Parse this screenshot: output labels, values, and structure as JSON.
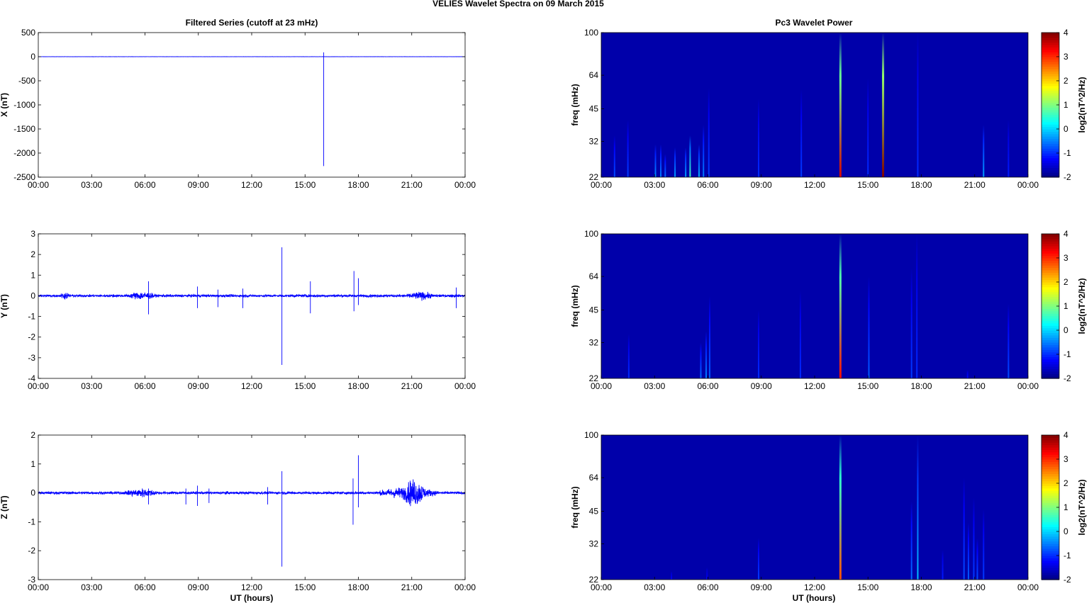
{
  "figure": {
    "suptitle": "VELIES Wavelet Spectra on 09 March     2015",
    "left_title": "Filtered Series (cutoff at 23 mHz)",
    "right_title": "Pc3 Wavelet Power",
    "x_label": "UT (hours)"
  },
  "chart_data": [
    {
      "type": "line",
      "panel": "X",
      "ylabel": "X (nT)",
      "xlim": [
        0,
        24
      ],
      "ylim": [
        -2500,
        500
      ],
      "xticks": [
        "00:00",
        "03:00",
        "06:00",
        "09:00",
        "12:00",
        "15:00",
        "18:00",
        "21:00",
        "00:00"
      ],
      "yticks": [
        -2500,
        -2000,
        -1500,
        -1000,
        -500,
        0,
        500
      ],
      "color": "#0000ff",
      "baseline_noise": 2,
      "spikes": [
        {
          "x": 16.05,
          "y_min": -2270,
          "y_max": 90
        }
      ]
    },
    {
      "type": "line",
      "panel": "Y",
      "ylabel": "Y (nT)",
      "xlim": [
        0,
        24
      ],
      "ylim": [
        -4,
        3
      ],
      "xticks": [
        "00:00",
        "03:00",
        "06:00",
        "09:00",
        "12:00",
        "15:00",
        "18:00",
        "21:00",
        "00:00"
      ],
      "yticks": [
        -4,
        -3,
        -2,
        -1,
        0,
        1,
        2,
        3
      ],
      "color": "#0000ff",
      "baseline_noise": 0.07,
      "bursts": [
        {
          "x0": 5.0,
          "x1": 6.6,
          "amp": 0.15
        },
        {
          "x0": 20.7,
          "x1": 22.3,
          "amp": 0.15
        },
        {
          "x0": 1.2,
          "x1": 1.8,
          "amp": 0.12
        }
      ],
      "spikes": [
        {
          "x": 6.2,
          "y_min": -0.9,
          "y_max": 0.7
        },
        {
          "x": 8.95,
          "y_min": -0.6,
          "y_max": 0.45
        },
        {
          "x": 10.1,
          "y_min": -0.55,
          "y_max": 0.3
        },
        {
          "x": 11.5,
          "y_min": -0.6,
          "y_max": 0.35
        },
        {
          "x": 13.7,
          "y_min": -3.35,
          "y_max": 2.35
        },
        {
          "x": 15.3,
          "y_min": -0.85,
          "y_max": 0.7
        },
        {
          "x": 17.75,
          "y_min": -0.75,
          "y_max": 1.2
        },
        {
          "x": 18.0,
          "y_min": -0.45,
          "y_max": 0.85
        },
        {
          "x": 23.5,
          "y_min": -0.6,
          "y_max": 0.4
        }
      ]
    },
    {
      "type": "line",
      "panel": "Z",
      "ylabel": "Z (nT)",
      "xlim": [
        0,
        24
      ],
      "ylim": [
        -3,
        2
      ],
      "xticks": [
        "00:00",
        "03:00",
        "06:00",
        "09:00",
        "12:00",
        "15:00",
        "18:00",
        "21:00",
        "00:00"
      ],
      "yticks": [
        -3,
        -2,
        -1,
        0,
        1,
        2
      ],
      "color": "#0000ff",
      "baseline_noise": 0.05,
      "bursts": [
        {
          "x0": 4.8,
          "x1": 6.8,
          "amp": 0.12
        },
        {
          "x0": 19.0,
          "x1": 22.6,
          "amp": 0.18
        },
        {
          "x0": 20.5,
          "x1": 21.8,
          "amp": 0.3
        }
      ],
      "spikes": [
        {
          "x": 6.2,
          "y_min": -0.4,
          "y_max": 0.15
        },
        {
          "x": 8.3,
          "y_min": -0.4,
          "y_max": 0.15
        },
        {
          "x": 8.95,
          "y_min": -0.45,
          "y_max": 0.25
        },
        {
          "x": 9.6,
          "y_min": -0.35,
          "y_max": 0.15
        },
        {
          "x": 12.9,
          "y_min": -0.4,
          "y_max": 0.2
        },
        {
          "x": 13.7,
          "y_min": -2.55,
          "y_max": 0.75
        },
        {
          "x": 17.7,
          "y_min": -1.1,
          "y_max": 0.5
        },
        {
          "x": 18.0,
          "y_min": -0.5,
          "y_max": 1.3
        }
      ]
    },
    {
      "type": "heatmap",
      "panel": "X wavelet",
      "ylabel": "freq (mHz)",
      "colorbar_label": "log2(nT^2/Hz)",
      "xlim": [
        0,
        24
      ],
      "ylim": [
        22,
        100
      ],
      "yscale": "log",
      "clim": [
        -2,
        4
      ],
      "xticks": [
        "00:00",
        "03:00",
        "06:00",
        "09:00",
        "12:00",
        "15:00",
        "18:00",
        "21:00",
        "00:00"
      ],
      "yticks": [
        22,
        32,
        45,
        64,
        100
      ],
      "cticks": [
        -2,
        -1,
        0,
        1,
        2,
        3,
        4
      ],
      "colormap": "jet",
      "background_level": -1.75,
      "streaks": [
        {
          "x": 0.75,
          "fmax": 34,
          "level": -0.8
        },
        {
          "x": 1.5,
          "fmax": 40,
          "level": -0.9
        },
        {
          "x": 3.05,
          "fmax": 31,
          "level": -0.4
        },
        {
          "x": 3.35,
          "fmax": 31,
          "level": -0.5
        },
        {
          "x": 3.6,
          "fmax": 28,
          "level": -0.6
        },
        {
          "x": 4.15,
          "fmax": 30,
          "level": -0.3
        },
        {
          "x": 4.75,
          "fmax": 30,
          "level": -0.3
        },
        {
          "x": 5.0,
          "fmax": 34,
          "level": 0.6
        },
        {
          "x": 5.5,
          "fmax": 31,
          "level": -0.2
        },
        {
          "x": 5.75,
          "fmax": 38,
          "level": -0.5
        },
        {
          "x": 6.05,
          "fmax": 56,
          "level": -0.9
        },
        {
          "x": 8.85,
          "fmax": 50,
          "level": -1.0
        },
        {
          "x": 11.25,
          "fmax": 55,
          "level": -0.9
        },
        {
          "x": 13.45,
          "fmax": 100,
          "level": 3.5
        },
        {
          "x": 15.0,
          "fmax": 62,
          "level": -1.0
        },
        {
          "x": 15.85,
          "fmax": 100,
          "level": 4.0
        },
        {
          "x": 17.8,
          "fmax": 100,
          "level": -1.0
        },
        {
          "x": 21.5,
          "fmax": 38,
          "level": -0.3
        },
        {
          "x": 22.9,
          "fmax": 40,
          "level": -1.1
        }
      ]
    },
    {
      "type": "heatmap",
      "panel": "Y wavelet",
      "ylabel": "freq (mHz)",
      "colorbar_label": "log2(nT^2/Hz)",
      "xlim": [
        0,
        24
      ],
      "ylim": [
        22,
        100
      ],
      "yscale": "log",
      "clim": [
        -2,
        4
      ],
      "xticks": [
        "00:00",
        "03:00",
        "06:00",
        "09:00",
        "12:00",
        "15:00",
        "18:00",
        "21:00",
        "00:00"
      ],
      "yticks": [
        22,
        32,
        45,
        64,
        100
      ],
      "cticks": [
        -2,
        -1,
        0,
        1,
        2,
        3,
        4
      ],
      "colormap": "jet",
      "background_level": -1.75,
      "streaks": [
        {
          "x": 1.55,
          "fmax": 35,
          "level": -1.0
        },
        {
          "x": 5.6,
          "fmax": 32,
          "level": -0.6
        },
        {
          "x": 5.9,
          "fmax": 36,
          "level": -0.5
        },
        {
          "x": 6.1,
          "fmax": 52,
          "level": -0.7
        },
        {
          "x": 8.85,
          "fmax": 45,
          "level": -1.0
        },
        {
          "x": 11.2,
          "fmax": 55,
          "level": -1.0
        },
        {
          "x": 13.45,
          "fmax": 100,
          "level": 3.2
        },
        {
          "x": 15.05,
          "fmax": 64,
          "level": -0.7
        },
        {
          "x": 17.45,
          "fmax": 70,
          "level": -0.9
        },
        {
          "x": 17.75,
          "fmax": 100,
          "level": -1.0
        },
        {
          "x": 20.6,
          "fmax": 24,
          "level": -1.2
        },
        {
          "x": 22.9,
          "fmax": 48,
          "level": -0.8
        }
      ]
    },
    {
      "type": "heatmap",
      "panel": "Z wavelet",
      "ylabel": "freq (mHz)",
      "colorbar_label": "log2(nT^2/Hz)",
      "xlim": [
        0,
        24
      ],
      "ylim": [
        22,
        100
      ],
      "yscale": "log",
      "clim": [
        -2,
        4
      ],
      "xticks": [
        "00:00",
        "03:00",
        "06:00",
        "09:00",
        "12:00",
        "15:00",
        "18:00",
        "21:00",
        "00:00"
      ],
      "yticks": [
        22,
        32,
        45,
        64,
        100
      ],
      "cticks": [
        -2,
        -1,
        0,
        1,
        2,
        3,
        4
      ],
      "colormap": "jet",
      "background_level": -1.75,
      "streaks": [
        {
          "x": 3.95,
          "fmax": 24,
          "level": -1.3
        },
        {
          "x": 5.95,
          "fmax": 25,
          "level": -1.3
        },
        {
          "x": 8.85,
          "fmax": 34,
          "level": -0.9
        },
        {
          "x": 13.45,
          "fmax": 100,
          "level": 2.8
        },
        {
          "x": 17.45,
          "fmax": 50,
          "level": -0.6
        },
        {
          "x": 17.8,
          "fmax": 100,
          "level": -0.1
        },
        {
          "x": 19.2,
          "fmax": 30,
          "level": -1.1
        },
        {
          "x": 20.4,
          "fmax": 64,
          "level": -0.8
        },
        {
          "x": 20.65,
          "fmax": 40,
          "level": -0.7
        },
        {
          "x": 20.95,
          "fmax": 52,
          "level": -0.9
        },
        {
          "x": 21.15,
          "fmax": 34,
          "level": -0.8
        },
        {
          "x": 21.5,
          "fmax": 46,
          "level": -0.9
        }
      ]
    }
  ]
}
